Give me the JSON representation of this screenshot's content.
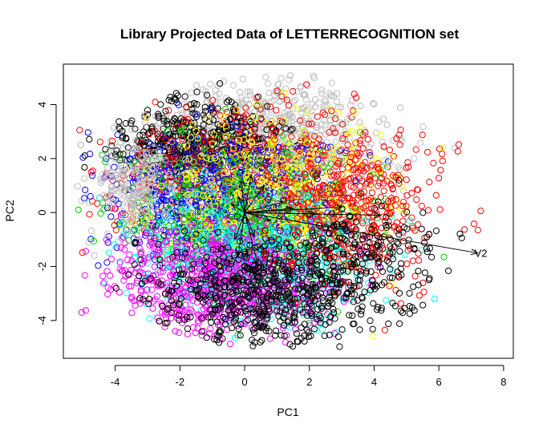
{
  "chart_data": {
    "type": "scatter",
    "title": "Library Projected Data of  LETTERRECOGNITION  set",
    "xlabel": "PC1",
    "ylabel": "PC2",
    "xlim": [
      -5.6,
      8.3
    ],
    "ylim": [
      -5.4,
      5.5
    ],
    "xticks": [
      -4,
      -2,
      0,
      2,
      4,
      6,
      8
    ],
    "yticks": [
      -4,
      -2,
      0,
      2,
      4
    ],
    "grid": false,
    "legend": "none",
    "marker": "open-circle",
    "point_colors": [
      "#000000",
      "#ff0000",
      "#00cd00",
      "#0000ff",
      "#00ffff",
      "#ff00ff",
      "#ffff00",
      "#bebebe"
    ],
    "clusters": [
      {
        "color": "#bebebe",
        "cx": 0.5,
        "cy": 2.6,
        "sx": 1.9,
        "sy": 1.2,
        "n": 900
      },
      {
        "color": "#000000",
        "cx": -1.6,
        "cy": 2.6,
        "sx": 1.3,
        "sy": 0.8,
        "n": 500
      },
      {
        "color": "#ff0000",
        "cx": 0.5,
        "cy": 1.0,
        "sx": 2.4,
        "sy": 1.3,
        "n": 700
      },
      {
        "color": "#0000ff",
        "cx": -1.0,
        "cy": 0.3,
        "sx": 1.8,
        "sy": 1.3,
        "n": 600
      },
      {
        "color": "#00cd00",
        "cx": 0.0,
        "cy": -0.3,
        "sx": 1.8,
        "sy": 1.4,
        "n": 600
      },
      {
        "color": "#ffff00",
        "cx": 0.8,
        "cy": 0.8,
        "sx": 1.8,
        "sy": 1.4,
        "n": 400
      },
      {
        "color": "#00ffff",
        "cx": 0.3,
        "cy": -1.8,
        "sx": 1.8,
        "sy": 1.2,
        "n": 600
      },
      {
        "color": "#ff00ff",
        "cx": -0.8,
        "cy": -2.6,
        "sx": 1.7,
        "sy": 1.0,
        "n": 700
      },
      {
        "color": "#000000",
        "cx": 0.8,
        "cy": -2.9,
        "sx": 1.8,
        "sy": 1.0,
        "n": 650
      },
      {
        "color": "#ff0000",
        "cx": 3.3,
        "cy": 0.0,
        "sx": 1.3,
        "sy": 1.4,
        "n": 300
      },
      {
        "color": "#000000",
        "cx": 3.3,
        "cy": -1.5,
        "sx": 1.3,
        "sy": 1.0,
        "n": 200
      },
      {
        "color": "#bebebe",
        "cx": -3.5,
        "cy": 1.0,
        "sx": 0.7,
        "sy": 1.0,
        "n": 200
      }
    ],
    "loading_vectors": [
      {
        "label": "V2",
        "x": 7.2,
        "y": -1.5
      },
      {
        "label": "",
        "x": 4.2,
        "y": -0.1
      },
      {
        "label": "",
        "x": 3.0,
        "y": 0.2
      },
      {
        "label": "",
        "x": 2.2,
        "y": -0.05
      },
      {
        "label": "",
        "x": 1.5,
        "y": 0.15
      },
      {
        "label": "",
        "x": 0.6,
        "y": 1.0
      },
      {
        "label": "",
        "x": 0.2,
        "y": 1.4
      },
      {
        "label": "",
        "x": -0.1,
        "y": 1.2
      },
      {
        "label": "",
        "x": 0.4,
        "y": -1.9
      },
      {
        "label": "",
        "x": -0.2,
        "y": -1.6
      },
      {
        "label": "",
        "x": -0.3,
        "y": -1.0
      },
      {
        "label": "",
        "x": 0.3,
        "y": -0.9
      },
      {
        "label": "",
        "x": -0.4,
        "y": 0.3
      },
      {
        "label": "",
        "x": 0.8,
        "y": -0.3
      },
      {
        "label": "",
        "x": 1.2,
        "y": 0.4
      },
      {
        "label": "",
        "x": -0.2,
        "y": 0.6
      }
    ],
    "seed": 7
  }
}
